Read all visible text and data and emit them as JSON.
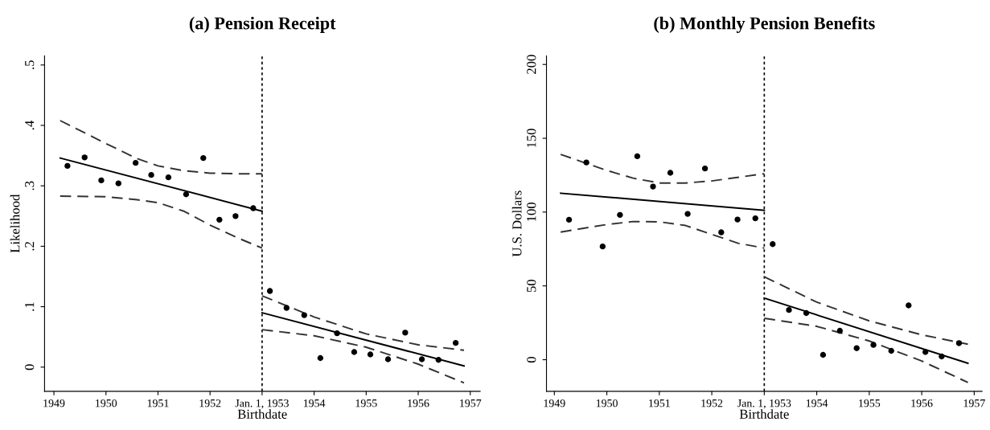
{
  "chart_data": [
    {
      "type": "scatter",
      "title": "(a) Pension Receipt",
      "xlabel": "Birthdate",
      "ylabel": "Likelihood",
      "xlim": [
        1948.82,
        1957.19
      ],
      "ylim": [
        -0.04,
        0.515
      ],
      "xticks": [
        1949,
        1950,
        1951,
        1952,
        {
          "value": 1953,
          "label": "Jan. 1, 1953"
        },
        1954,
        1955,
        1956,
        1957
      ],
      "yticks": [
        0,
        {
          "value": 0.1,
          "label": ".1"
        },
        {
          "value": 0.2,
          "label": ".2"
        },
        {
          "value": 0.3,
          "label": ".3"
        },
        {
          "value": 0.4,
          "label": ".4"
        },
        {
          "value": 0.5,
          "label": ".5"
        }
      ],
      "grid": false,
      "legend": false,
      "ref_lines": [
        {
          "axis": "x",
          "value": 1953,
          "color": "#000000",
          "line_style": "dotted"
        }
      ],
      "series": [
        {
          "color": "#000000",
          "marker": "circle",
          "x": [
            1949.26,
            1949.59,
            1949.91,
            1950.24,
            1950.57,
            1950.87,
            1951.2,
            1951.54,
            1951.87,
            1952.18,
            1952.49,
            1952.83,
            1953.15,
            1953.47,
            1953.81,
            1954.12,
            1954.44,
            1954.77,
            1955.08,
            1955.42,
            1955.75,
            1956.07,
            1956.39,
            1956.72
          ],
          "values": [
            0.333,
            0.347,
            0.309,
            0.304,
            0.338,
            0.318,
            0.314,
            0.286,
            0.346,
            0.244,
            0.25,
            0.263,
            0.126,
            0.098,
            0.086,
            0.015,
            0.056,
            0.025,
            0.021,
            0.013,
            0.057,
            0.013,
            0.012,
            0.04
          ]
        },
        {
          "type": "line",
          "color": "#000000",
          "line_style": "solid",
          "x": [
            1949.12,
            1953
          ],
          "values": [
            0.346,
            0.258
          ]
        },
        {
          "type": "line",
          "color": "#000000",
          "line_style": "solid",
          "x": [
            1953,
            1956.88
          ],
          "values": [
            0.09,
            0.002
          ]
        },
        {
          "type": "line",
          "color": "#333333",
          "line_style": "dashed",
          "x": [
            1949.12,
            1950,
            1950.6,
            1951,
            1951.5,
            1952,
            1952.5,
            1953
          ],
          "values": [
            0.408,
            0.37,
            0.345,
            0.333,
            0.325,
            0.321,
            0.32,
            0.32
          ]
        },
        {
          "type": "line",
          "color": "#333333",
          "line_style": "dashed",
          "x": [
            1949.12,
            1950,
            1950.6,
            1951,
            1951.5,
            1952,
            1952.5,
            1953
          ],
          "values": [
            0.283,
            0.282,
            0.277,
            0.272,
            0.258,
            0.235,
            0.215,
            0.197
          ]
        },
        {
          "type": "line",
          "color": "#333333",
          "line_style": "dashed",
          "x": [
            1953,
            1954,
            1955,
            1956,
            1956.88
          ],
          "values": [
            0.118,
            0.083,
            0.055,
            0.037,
            0.028
          ]
        },
        {
          "type": "line",
          "color": "#333333",
          "line_style": "dashed",
          "x": [
            1953,
            1954,
            1955,
            1956,
            1956.88
          ],
          "values": [
            0.062,
            0.052,
            0.033,
            0.005,
            -0.026
          ]
        }
      ]
    },
    {
      "type": "scatter",
      "title": "(b) Monthly Pension Benefits",
      "xlabel": "Birthdate",
      "ylabel": "U.S. Dollars",
      "xlim": [
        1948.85,
        1957.15
      ],
      "ylim": [
        -21.4,
        205.8
      ],
      "xticks": [
        1949,
        1950,
        1951,
        1952,
        {
          "value": 1953,
          "label": "Jan. 1, 1953"
        },
        1954,
        1955,
        1956,
        1957
      ],
      "yticks": [
        0,
        50,
        100,
        150,
        200
      ],
      "grid": false,
      "legend": false,
      "ref_lines": [
        {
          "axis": "x",
          "value": 1953,
          "color": "#000000",
          "line_style": "dotted"
        }
      ],
      "series": [
        {
          "color": "#000000",
          "marker": "circle",
          "x": [
            1949.28,
            1949.61,
            1949.92,
            1950.25,
            1950.58,
            1950.88,
            1951.21,
            1951.54,
            1951.87,
            1952.18,
            1952.49,
            1952.83,
            1953.16,
            1953.47,
            1953.8,
            1954.12,
            1954.44,
            1954.76,
            1955.08,
            1955.42,
            1955.75,
            1956.07,
            1956.38,
            1956.71
          ],
          "values": [
            94.8,
            133.6,
            76.7,
            98.1,
            137.8,
            117.3,
            126.6,
            98.8,
            129.5,
            86.3,
            95.0,
            95.8,
            78.3,
            33.7,
            31.6,
            3.3,
            19.6,
            7.8,
            10.0,
            6.0,
            36.8,
            5.2,
            2.2,
            11.2
          ]
        },
        {
          "type": "line",
          "color": "#000000",
          "line_style": "solid",
          "x": [
            1949.12,
            1953
          ],
          "values": [
            112.8,
            101.2
          ]
        },
        {
          "type": "line",
          "color": "#000000",
          "line_style": "solid",
          "x": [
            1953,
            1956.88
          ],
          "values": [
            41.7,
            -2.4
          ]
        },
        {
          "type": "line",
          "color": "#333333",
          "line_style": "dashed",
          "x": [
            1949.12,
            1950,
            1950.5,
            1951,
            1951.5,
            1952,
            1953
          ],
          "values": [
            139.1,
            128.2,
            123.0,
            119.7,
            119.7,
            121.1,
            126.0
          ]
        },
        {
          "type": "line",
          "color": "#333333",
          "line_style": "dashed",
          "x": [
            1949.12,
            1950,
            1950.5,
            1951,
            1951.5,
            1952,
            1952.5,
            1953
          ],
          "values": [
            86.5,
            91.6,
            93.6,
            93.4,
            90.9,
            84.9,
            78.9,
            75.6
          ]
        },
        {
          "type": "line",
          "color": "#333333",
          "line_style": "dashed",
          "x": [
            1953,
            1954,
            1955,
            1956,
            1956.88
          ],
          "values": [
            56.2,
            39.0,
            26.3,
            16.9,
            10.5
          ]
        },
        {
          "type": "line",
          "color": "#333333",
          "line_style": "dashed",
          "x": [
            1953,
            1954,
            1955,
            1956,
            1956.88
          ],
          "values": [
            28.1,
            22.6,
            12.7,
            -0.9,
            -15.4
          ]
        }
      ]
    }
  ]
}
